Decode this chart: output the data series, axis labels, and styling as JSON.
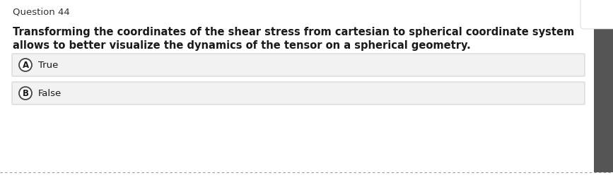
{
  "background_color": "#ffffff",
  "page_bg_color": "#f0f0f0",
  "title": "Question 44",
  "title_fontsize": 9.5,
  "title_color": "#333333",
  "question_text_line1": "Transforming the coordinates of the shear stress from cartesian to spherical coordinate system",
  "question_text_line2": "allows to better visualize the dynamics of the tensor on a spherical geometry.",
  "question_fontsize": 10.5,
  "option_a_label": "A",
  "option_a_text": "True",
  "option_b_label": "B",
  "option_b_text": "False",
  "option_fontsize": 9.5,
  "option_bg_color": "#f2f2f2",
  "option_border_color": "#cccccc",
  "circle_color": "#ffffff",
  "circle_edge_color": "#444444",
  "bottom_border_color": "#999999",
  "text_color": "#1a1a1a",
  "right_tab_color": "#ffffff",
  "right_tab_edge": "#cccccc"
}
